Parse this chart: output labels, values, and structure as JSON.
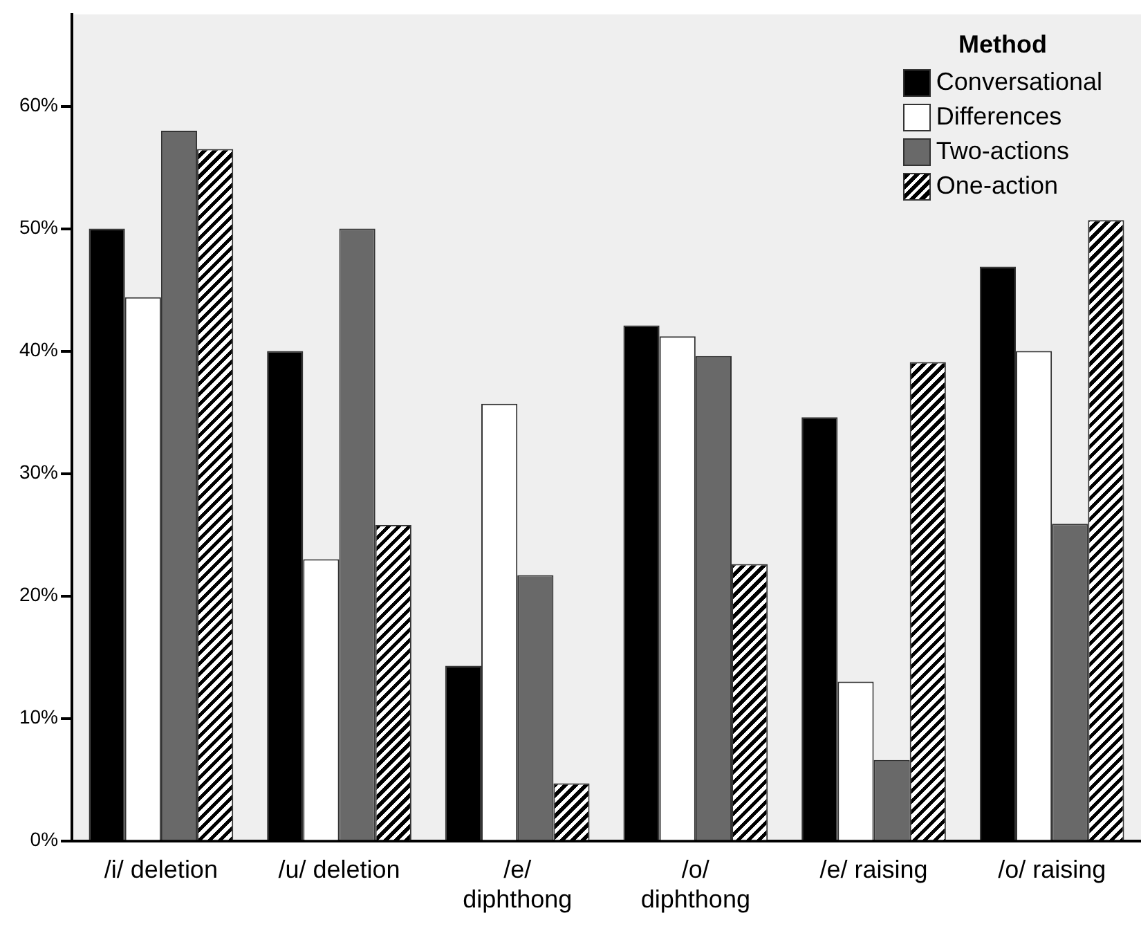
{
  "chart_data": {
    "type": "bar",
    "legend_title": "Method",
    "categories": [
      "/i/ deletion",
      "/u/ deletion",
      "/e/ diphthong",
      "/o/ diphthong",
      "/e/ raising",
      "/o/ raising"
    ],
    "series": [
      {
        "name": "Conversational",
        "color": "#000000",
        "values": [
          50,
          40,
          14.3,
          42.1,
          34.6,
          46.9
        ]
      },
      {
        "name": "Differences",
        "color": "#ffffff",
        "values": [
          44.4,
          23,
          35.7,
          41.2,
          13,
          40
        ]
      },
      {
        "name": "Two-actions",
        "color": "#696969",
        "values": [
          58,
          50,
          21.7,
          39.6,
          6.6,
          25.9
        ]
      },
      {
        "name": "One-action",
        "color": "#000000",
        "values": [
          56.5,
          25.8,
          4.7,
          22.6,
          39.1,
          50.7
        ]
      }
    ],
    "ylim": [
      0,
      67.5
    ],
    "yticks": [
      {
        "value": 0,
        "label": "0%"
      },
      {
        "value": 10,
        "label": "10%"
      },
      {
        "value": 20,
        "label": "20%"
      },
      {
        "value": 30,
        "label": "30%"
      },
      {
        "value": 40,
        "label": "40%"
      },
      {
        "value": 50,
        "label": "50%"
      },
      {
        "value": 60,
        "label": "60%"
      }
    ],
    "grid": false,
    "legend": "top right"
  }
}
